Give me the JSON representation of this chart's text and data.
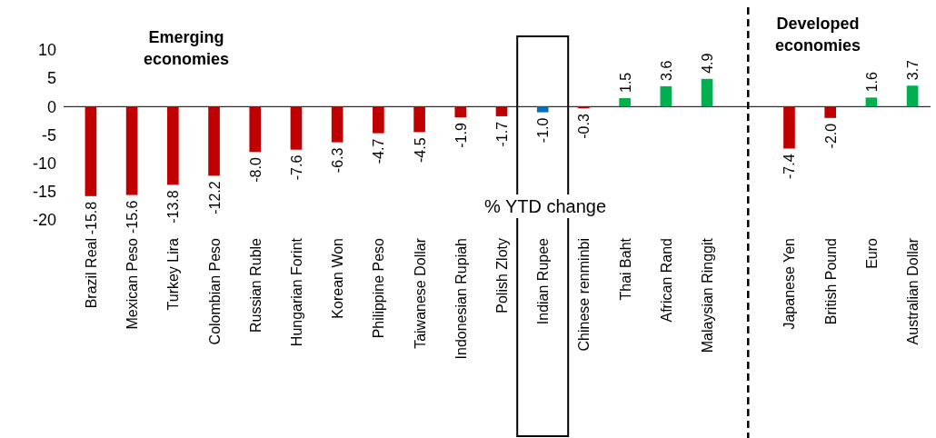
{
  "chart_data": {
    "type": "bar",
    "categories": [
      "Brazil Real",
      "Mexican Peso",
      "Turkey Lira",
      "Colombian Peso",
      "Russian Ruble",
      "Hungarian Forint",
      "Korean Won",
      "Philippine Peso",
      "Taiwanese Dollar",
      "Indonesian Rupiah",
      "Polish Zloty",
      "Indian Rupee",
      "Chinese renminbi",
      "Thai Baht",
      "African Rand",
      "Malaysian Ringgit",
      null,
      "Japanese Yen",
      "British Pound",
      "Euro",
      "Australian Dollar"
    ],
    "values": [
      -15.8,
      -15.6,
      -13.8,
      -12.2,
      -8.0,
      -7.6,
      -6.3,
      -4.7,
      -4.5,
      -1.9,
      -1.7,
      -1.0,
      -0.3,
      1.5,
      3.6,
      4.9,
      null,
      -7.4,
      -2.0,
      1.6,
      3.7
    ],
    "colors": [
      "#c00000",
      "#c00000",
      "#c00000",
      "#c00000",
      "#c00000",
      "#c00000",
      "#c00000",
      "#c00000",
      "#c00000",
      "#c00000",
      "#c00000",
      "#0070c0",
      "#c00000",
      "#00b050",
      "#00b050",
      "#00b050",
      null,
      "#c00000",
      "#c00000",
      "#00b050",
      "#00b050"
    ],
    "value_labels": [
      "-15.8",
      "-15.6",
      "-13.8",
      "-12.2",
      "-8.0",
      "-7.6",
      "-6.3",
      "-4.7",
      "-4.5",
      "-1.9",
      "-1.7",
      "-1.0",
      "-0.3",
      "1.5",
      "3.6",
      "4.9",
      null,
      "-7.4",
      "-2.0",
      "1.6",
      "3.7"
    ],
    "xlabel": "% YTD change",
    "ylim": [
      -20,
      10
    ],
    "yticks": [
      -20,
      -15,
      -10,
      -5,
      0,
      5,
      10
    ],
    "annotations": [
      "Emerging economies",
      "Developed economies"
    ]
  }
}
